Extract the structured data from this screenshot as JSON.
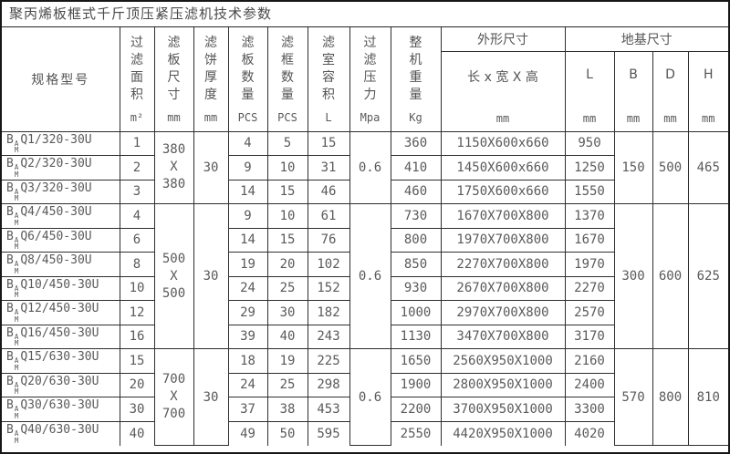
{
  "title": "聚丙烯板框式千斤顶压紧压滤机技术参数",
  "table": {
    "header": {
      "model": {
        "label": "规格型号"
      },
      "filter_area": {
        "label": "过滤面积",
        "unit": "m²"
      },
      "plate_size": {
        "label": "滤板尺寸",
        "unit": "mm"
      },
      "cake_thickness": {
        "label": "滤饼厚度",
        "unit": "mm"
      },
      "plate_qty": {
        "label": "滤板数量",
        "unit": "PCS"
      },
      "frame_qty": {
        "label": "滤框数量",
        "unit": "PCS"
      },
      "chamber_volume": {
        "label": "滤室容积",
        "unit": "L"
      },
      "filter_pressure": {
        "label": "过滤压力",
        "unit": "Mpa"
      },
      "machine_weight": {
        "label": "整机重量",
        "unit": "Kg"
      },
      "outline_dims": {
        "label": "外形尺寸"
      },
      "foundation_dims": {
        "label": "地基尺寸"
      },
      "lwh": {
        "label": "长 x 宽 X 高",
        "unit": "mm"
      },
      "L": {
        "label": "L",
        "unit": "mm"
      },
      "B": {
        "label": "B",
        "unit": "mm"
      },
      "D": {
        "label": "D",
        "unit": "mm"
      },
      "H": {
        "label": "H",
        "unit": "mm"
      }
    },
    "model_prefix": {
      "base": "B",
      "sup": "A",
      "sub": "M"
    },
    "groups": [
      {
        "rows": 3,
        "plate_size": [
          "380",
          "X",
          "380"
        ],
        "cake_thickness": "30",
        "pressure": "0.6",
        "B": "150",
        "D": "500",
        "H": "465"
      },
      {
        "rows": 6,
        "plate_size": [
          "500",
          "X",
          "500"
        ],
        "cake_thickness": "30",
        "pressure": "0.6",
        "B": "300",
        "D": "600",
        "H": "625"
      },
      {
        "rows": 4,
        "plate_size": [
          "700",
          "X",
          "700"
        ],
        "cake_thickness": "30",
        "pressure": "0.6",
        "B": "570",
        "D": "800",
        "H": "810"
      }
    ],
    "rows": [
      {
        "model": "Q1/320-30U",
        "area": "1",
        "plates": "4",
        "frames": "5",
        "volume": "15",
        "weight": "360",
        "dims": "1150X600x660",
        "L": "950"
      },
      {
        "model": "Q2/320-30U",
        "area": "2",
        "plates": "9",
        "frames": "10",
        "volume": "31",
        "weight": "410",
        "dims": "1450X600x660",
        "L": "1250"
      },
      {
        "model": "Q3/320-30U",
        "area": "3",
        "plates": "14",
        "frames": "15",
        "volume": "46",
        "weight": "460",
        "dims": "1750X600x660",
        "L": "1550"
      },
      {
        "model": "Q4/450-30U",
        "area": "4",
        "plates": "9",
        "frames": "10",
        "volume": "61",
        "weight": "730",
        "dims": "1670X700X800",
        "L": "1370"
      },
      {
        "model": "Q6/450-30U",
        "area": "6",
        "plates": "14",
        "frames": "15",
        "volume": "76",
        "weight": "800",
        "dims": "1970X700X800",
        "L": "1670"
      },
      {
        "model": "Q8/450-30U",
        "area": "8",
        "plates": "19",
        "frames": "20",
        "volume": "102",
        "weight": "850",
        "dims": "2270X700X800",
        "L": "1970"
      },
      {
        "model": "Q10/450-30U",
        "area": "10",
        "plates": "24",
        "frames": "25",
        "volume": "152",
        "weight": "930",
        "dims": "2670X700X800",
        "L": "2270"
      },
      {
        "model": "Q12/450-30U",
        "area": "12",
        "plates": "29",
        "frames": "30",
        "volume": "182",
        "weight": "1000",
        "dims": "2970X700X800",
        "L": "2570"
      },
      {
        "model": "Q16/450-30U",
        "area": "16",
        "plates": "39",
        "frames": "40",
        "volume": "243",
        "weight": "1130",
        "dims": "3470X700X800",
        "L": "3170"
      },
      {
        "model": "Q15/630-30U",
        "area": "15",
        "plates": "18",
        "frames": "19",
        "volume": "225",
        "weight": "1650",
        "dims": "2560X950X1000",
        "L": "2160"
      },
      {
        "model": "Q20/630-30U",
        "area": "20",
        "plates": "24",
        "frames": "25",
        "volume": "298",
        "weight": "1900",
        "dims": "2800X950X1000",
        "L": "2400"
      },
      {
        "model": "Q30/630-30U",
        "area": "30",
        "plates": "37",
        "frames": "38",
        "volume": "453",
        "weight": "2200",
        "dims": "3700X950X1000",
        "L": "3300"
      },
      {
        "model": "Q40/630-30U",
        "area": "40",
        "plates": "49",
        "frames": "50",
        "volume": "595",
        "weight": "2550",
        "dims": "4420X950X1000",
        "L": "4020"
      }
    ]
  }
}
